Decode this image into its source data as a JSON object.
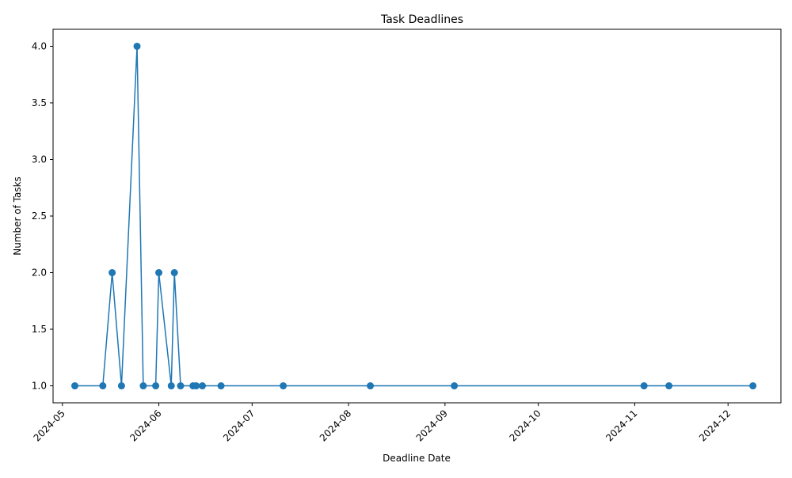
{
  "chart_data": {
    "type": "line",
    "title": "Task Deadlines",
    "xlabel": "Deadline Date",
    "ylabel": "Number of Tasks",
    "x_axis_type": "date",
    "xlim": [
      "2024-04-28",
      "2024-12-18"
    ],
    "ylim": [
      0.85,
      4.15
    ],
    "x_ticks": [
      "2024-05-01",
      "2024-06-01",
      "2024-07-01",
      "2024-08-01",
      "2024-09-01",
      "2024-10-01",
      "2024-11-01",
      "2024-12-01"
    ],
    "x_tick_labels": [
      "2024-05",
      "2024-06",
      "2024-07",
      "2024-08",
      "2024-09",
      "2024-10",
      "2024-11",
      "2024-12"
    ],
    "y_ticks": [
      1.0,
      1.5,
      2.0,
      2.5,
      3.0,
      3.5,
      4.0
    ],
    "y_tick_labels": [
      "1.0",
      "1.5",
      "2.0",
      "2.5",
      "3.0",
      "3.5",
      "4.0"
    ],
    "grid": false,
    "legend": "none",
    "series": [
      {
        "color": "#1f77b4",
        "marker": "circle",
        "x": [
          "2024-05-05",
          "2024-05-14",
          "2024-05-17",
          "2024-05-20",
          "2024-05-25",
          "2024-05-27",
          "2024-05-31",
          "2024-06-01",
          "2024-06-05",
          "2024-06-06",
          "2024-06-08",
          "2024-06-12",
          "2024-06-13",
          "2024-06-15",
          "2024-06-21",
          "2024-07-11",
          "2024-08-08",
          "2024-09-04",
          "2024-11-04",
          "2024-11-12",
          "2024-12-09"
        ],
        "y": [
          1,
          1,
          2,
          1,
          4,
          1,
          1,
          2,
          1,
          2,
          1,
          1,
          1,
          1,
          1,
          1,
          1,
          1,
          1,
          1,
          1
        ]
      }
    ]
  }
}
